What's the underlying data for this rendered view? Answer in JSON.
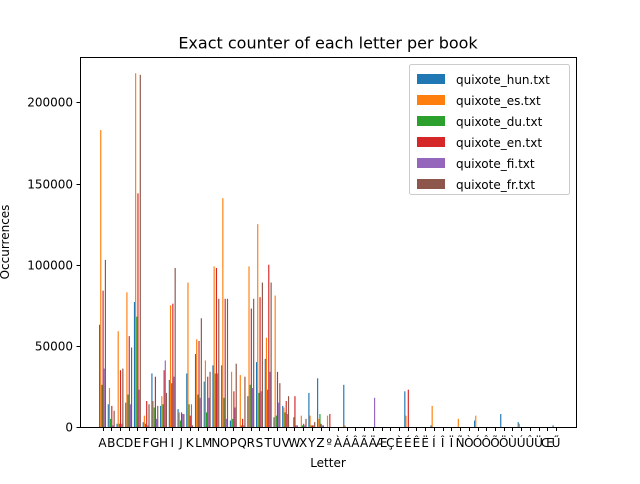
{
  "chart_data": {
    "type": "bar",
    "title": "Exact counter of each letter per book",
    "xlabel": "Letter",
    "ylabel": "Occurrences",
    "ylim": [
      0,
      228000
    ],
    "yticks": [
      0,
      50000,
      100000,
      150000,
      200000
    ],
    "ytick_labels": [
      "0",
      "50000",
      "100000",
      "150000",
      "200000"
    ],
    "legend_position": "top-right",
    "grid": false,
    "categories": [
      "A",
      "B",
      "C",
      "D",
      "E",
      "F",
      "G",
      "H",
      "I",
      "J",
      "K",
      "L",
      "M",
      "N",
      "O",
      "P",
      "Q",
      "R",
      "S",
      "T",
      "U",
      "V",
      "W",
      "X",
      "Y",
      "Z",
      "º",
      "À",
      "Á",
      "Â",
      "Ã",
      "Ä",
      "Æ",
      "Ç",
      "È",
      "É",
      "Ê",
      "Ë",
      "Í",
      "Î",
      "Ï",
      "Ñ",
      "Ò",
      "Ó",
      "Ô",
      "Õ",
      "Ö",
      "Ù",
      "Ú",
      "Û",
      "Ü",
      "Œ",
      "Ű"
    ],
    "tick_labels": "ABCDEFGHIJKLMNOPQRSTUVWXYZºÀÁÂÃÄÆÇÈÉÊËÍÎÏÑÒÓÔÕÖÙÚÛÜŒŰ",
    "series": [
      {
        "name": "quixote_hun.txt",
        "color": "#1f77b4",
        "values": [
          63000,
          14000,
          2000,
          15000,
          77000,
          3000,
          33000,
          13000,
          29000,
          11000,
          33000,
          45000,
          28000,
          38000,
          38000,
          4000,
          0,
          19000,
          40000,
          42000,
          6000,
          13000,
          0,
          0,
          21000,
          30000,
          0,
          0,
          26000,
          0,
          0,
          0,
          0,
          0,
          0,
          22000,
          0,
          0,
          1000,
          0,
          0,
          0,
          0,
          4000,
          0,
          0,
          8000,
          0,
          3000,
          0,
          0,
          0,
          1000
        ]
      },
      {
        "name": "quixote_es.txt",
        "color": "#ff7f0e",
        "values": [
          183000,
          24000,
          59000,
          83000,
          218000,
          7000,
          16000,
          19000,
          75000,
          9000,
          89000,
          54000,
          41000,
          99000,
          141000,
          34000,
          32000,
          99000,
          125000,
          55000,
          81000,
          12000,
          0,
          7000,
          7000,
          5000,
          7000,
          0,
          1000,
          0,
          0,
          0,
          0,
          0,
          0,
          7000,
          0,
          0,
          13000,
          0,
          0,
          5000,
          0,
          7000,
          0,
          0,
          0,
          0,
          2000,
          0,
          0,
          0,
          0
        ]
      },
      {
        "name": "quixote_du.txt",
        "color": "#2ca02c",
        "values": [
          26000,
          5000,
          2000,
          20000,
          68000,
          2000,
          12000,
          14000,
          27000,
          4000,
          14000,
          20000,
          9000,
          33000,
          18000,
          5000,
          1000,
          26000,
          21000,
          23000,
          7000,
          9000,
          6000,
          1000,
          1000,
          8000,
          0,
          0,
          0,
          0,
          0,
          0,
          0,
          0,
          0,
          0,
          0,
          0,
          0,
          0,
          0,
          0,
          0,
          0,
          0,
          0,
          0,
          0,
          0,
          0,
          0,
          0,
          0
        ]
      },
      {
        "name": "quixote_en.txt",
        "color": "#d62728",
        "values": [
          84000,
          13000,
          35000,
          56000,
          144000,
          16000,
          31000,
          35000,
          76000,
          9000,
          7000,
          53000,
          31000,
          98000,
          79000,
          22000,
          5000,
          73000,
          80000,
          100000,
          34000,
          16000,
          19000,
          2000,
          1000,
          2000,
          8000,
          0,
          0,
          0,
          0,
          0,
          0,
          0,
          0,
          23000,
          0,
          0,
          0,
          0,
          0,
          0,
          0,
          0,
          0,
          0,
          0,
          0,
          0,
          0,
          0,
          0,
          0
        ]
      },
      {
        "name": "quixote_fi.txt",
        "color": "#9467bd",
        "values": [
          36000,
          1000,
          2000,
          14000,
          23000,
          1000,
          5000,
          41000,
          31000,
          8000,
          14000,
          18000,
          18000,
          33000,
          5000,
          12000,
          1000,
          24000,
          22000,
          34000,
          15000,
          8000,
          1000,
          1000,
          1000,
          1000,
          0,
          0,
          0,
          0,
          0,
          18000,
          0,
          0,
          0,
          0,
          0,
          0,
          0,
          0,
          0,
          0,
          0,
          0,
          0,
          0,
          0,
          0,
          0,
          0,
          0,
          0,
          0
        ]
      },
      {
        "name": "quixote_fr.txt",
        "color": "#8c564b",
        "values": [
          103000,
          10000,
          36000,
          49000,
          217000,
          14000,
          13000,
          21000,
          98000,
          8000,
          1000,
          67000,
          34000,
          79000,
          79000,
          39000,
          31000,
          79000,
          89000,
          89000,
          27000,
          19000,
          1000,
          5000,
          3000,
          1000,
          0,
          0,
          0,
          0,
          0,
          0,
          0,
          0,
          0,
          0,
          0,
          0,
          0,
          0,
          0,
          0,
          0,
          0,
          0,
          0,
          0,
          0,
          0,
          0,
          0,
          0,
          0
        ]
      }
    ]
  }
}
